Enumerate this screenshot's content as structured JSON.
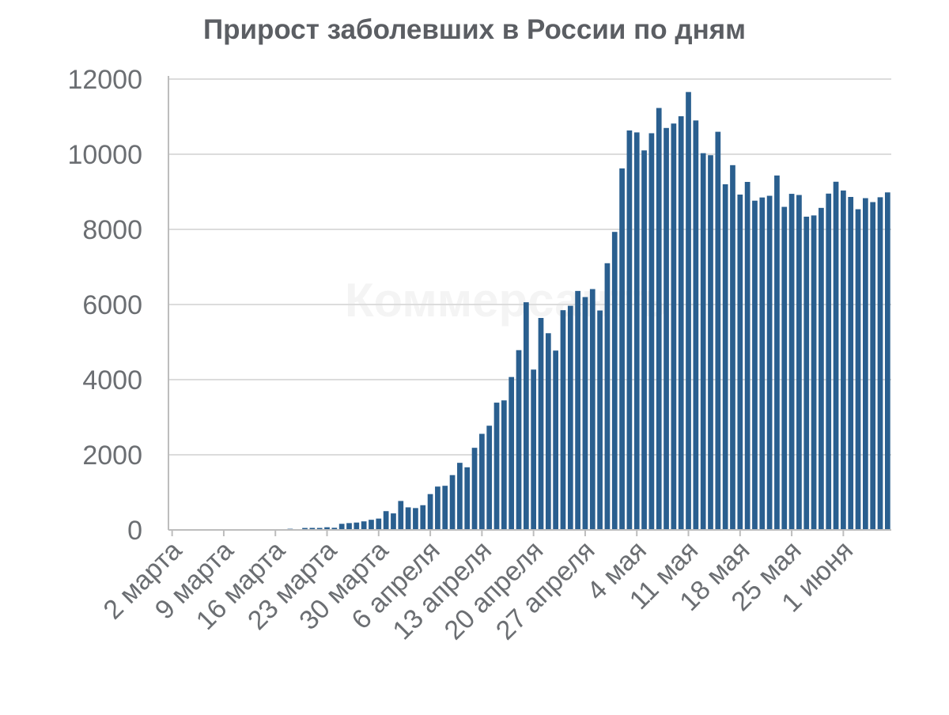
{
  "chart_data": {
    "type": "bar",
    "title": "Прирост заболевших в России по дням",
    "watermark": "Коммерсантъ",
    "xlabel": "",
    "ylabel": "",
    "ylim": [
      0,
      12000
    ],
    "yticks": [
      0,
      2000,
      4000,
      6000,
      8000,
      10000,
      12000
    ],
    "xtick_labels": [
      {
        "label": "2 марта",
        "index": 0
      },
      {
        "label": "9 марта",
        "index": 7
      },
      {
        "label": "16 марта",
        "index": 14
      },
      {
        "label": "23 марта",
        "index": 21
      },
      {
        "label": "30 марта",
        "index": 28
      },
      {
        "label": "6 апреля",
        "index": 35
      },
      {
        "label": "13 апреля",
        "index": 42
      },
      {
        "label": "20 апреля",
        "index": 49
      },
      {
        "label": "27 апреля",
        "index": 56
      },
      {
        "label": "4 мая",
        "index": 63
      },
      {
        "label": "11 мая",
        "index": 70
      },
      {
        "label": "18 мая",
        "index": 77
      },
      {
        "label": "25 мая",
        "index": 84
      },
      {
        "label": "1 июня",
        "index": 91
      }
    ],
    "grid": true,
    "series": [
      {
        "color": "#2a5f8f",
        "values": [
          0,
          0,
          1,
          0,
          0,
          4,
          0,
          3,
          3,
          2,
          8,
          6,
          14,
          5,
          14,
          20,
          30,
          21,
          52,
          54,
          53,
          71,
          57,
          163,
          182,
          196,
          228,
          270,
          302,
          500,
          440,
          771,
          601,
          582,
          658,
          954,
          1154,
          1175,
          1459,
          1786,
          1667,
          2186,
          2558,
          2774,
          3388,
          3448,
          4070,
          4785,
          6060,
          4268,
          5642,
          5236,
          4774,
          5849,
          5966,
          6361,
          6198,
          6411,
          5841,
          7099,
          7933,
          9623,
          10633,
          10581,
          10102,
          10559,
          11231,
          10699,
          10817,
          11012,
          11656,
          10899,
          10028,
          9974,
          10598,
          9200,
          9709,
          8926,
          9263,
          8764,
          8849,
          8894,
          9434,
          8599,
          8946,
          8915,
          8338,
          8371,
          8572,
          8952,
          9268,
          9035,
          8863,
          8536,
          8831,
          8726,
          8855,
          8984
        ]
      }
    ]
  }
}
